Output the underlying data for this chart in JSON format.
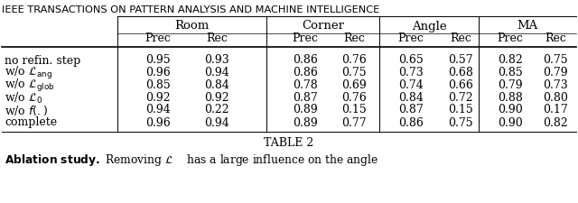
{
  "header_top": "IEEE TRANSACTIONS ON PATTERN ANALYSIS AND MACHINE INTELLIGENCE",
  "group_headers": [
    "Room",
    "Corner",
    "Angle",
    "MA"
  ],
  "sub_headers": [
    "Prec",
    "Rec",
    "Prec",
    "Rec",
    "Prec",
    "Rec",
    "Prec",
    "Rec"
  ],
  "data": [
    [
      "0.95",
      "0.93",
      "0.86",
      "0.76",
      "0.65",
      "0.57",
      "0.82",
      "0.75"
    ],
    [
      "0.96",
      "0.94",
      "0.86",
      "0.75",
      "0.73",
      "0.68",
      "0.85",
      "0.79"
    ],
    [
      "0.85",
      "0.84",
      "0.78",
      "0.69",
      "0.74",
      "0.66",
      "0.79",
      "0.73"
    ],
    [
      "0.92",
      "0.92",
      "0.87",
      "0.76",
      "0.84",
      "0.72",
      "0.88",
      "0.80"
    ],
    [
      "0.94",
      "0.22",
      "0.89",
      "0.15",
      "0.87",
      "0.15",
      "0.90",
      "0.17"
    ],
    [
      "0.96",
      "0.94",
      "0.89",
      "0.77",
      "0.86",
      "0.75",
      "0.90",
      "0.82"
    ]
  ],
  "table_caption": "TABLE 2",
  "bg_color": "#ffffff",
  "text_color": "#000000"
}
